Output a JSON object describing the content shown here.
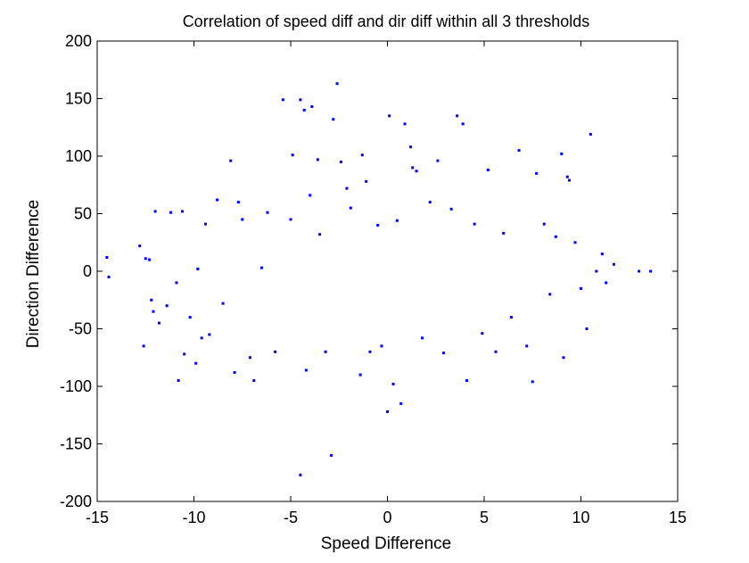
{
  "chart_data": {
    "type": "scatter",
    "title": "Correlation of speed diff and dir diff within all 3 thresholds",
    "xlabel": "Speed Difference",
    "ylabel": "Direction Difference",
    "xlim": [
      -15,
      15
    ],
    "ylim": [
      -200,
      200
    ],
    "xticks": [
      -15,
      -10,
      -5,
      0,
      5,
      10,
      15
    ],
    "yticks": [
      -200,
      -150,
      -100,
      -50,
      0,
      50,
      100,
      150,
      200
    ],
    "xtick_labels": [
      "-15",
      "-10",
      "-5",
      "0",
      "5",
      "10",
      "15"
    ],
    "ytick_labels": [
      "-200",
      "-150",
      "-100",
      "-50",
      "0",
      "50",
      "100",
      "150",
      "200"
    ],
    "grid": false,
    "legend": "none",
    "marker_color": "#0000ff",
    "series": [
      {
        "points": [
          [
            -14.5,
            12
          ],
          [
            -14.4,
            -5
          ],
          [
            -12.8,
            22
          ],
          [
            -12.5,
            11
          ],
          [
            -12.3,
            10
          ],
          [
            -12.6,
            -65
          ],
          [
            -12.2,
            -25
          ],
          [
            -12.1,
            -35
          ],
          [
            -12.0,
            52
          ],
          [
            -11.8,
            -45
          ],
          [
            -11.4,
            -30
          ],
          [
            -11.2,
            51
          ],
          [
            -10.9,
            -10
          ],
          [
            -10.8,
            -95
          ],
          [
            -10.6,
            52
          ],
          [
            -10.5,
            -72
          ],
          [
            -10.2,
            -40
          ],
          [
            -9.9,
            -80
          ],
          [
            -9.8,
            2
          ],
          [
            -9.6,
            -58
          ],
          [
            -9.4,
            41
          ],
          [
            -9.2,
            -55
          ],
          [
            -8.8,
            62
          ],
          [
            -8.5,
            -28
          ],
          [
            -8.1,
            96
          ],
          [
            -7.9,
            -88
          ],
          [
            -7.7,
            60
          ],
          [
            -7.5,
            45
          ],
          [
            -7.1,
            -75
          ],
          [
            -6.9,
            -95
          ],
          [
            -6.5,
            3
          ],
          [
            -6.2,
            51
          ],
          [
            -5.8,
            -70
          ],
          [
            -5.4,
            149
          ],
          [
            -5.0,
            45
          ],
          [
            -4.9,
            101
          ],
          [
            -4.5,
            149
          ],
          [
            -4.3,
            140
          ],
          [
            -4.2,
            -86
          ],
          [
            -4.0,
            66
          ],
          [
            -3.9,
            143
          ],
          [
            -3.6,
            97
          ],
          [
            -3.5,
            32
          ],
          [
            -3.2,
            -70
          ],
          [
            -2.8,
            132
          ],
          [
            -2.9,
            -160
          ],
          [
            -4.5,
            -177
          ],
          [
            -2.6,
            163
          ],
          [
            -2.4,
            95
          ],
          [
            -2.1,
            72
          ],
          [
            -1.9,
            55
          ],
          [
            -1.4,
            -90
          ],
          [
            -1.3,
            101
          ],
          [
            -1.1,
            78
          ],
          [
            -0.9,
            -70
          ],
          [
            -0.5,
            40
          ],
          [
            -0.3,
            -65
          ],
          [
            0.0,
            -122
          ],
          [
            0.1,
            135
          ],
          [
            0.3,
            -98
          ],
          [
            0.5,
            44
          ],
          [
            0.7,
            -115
          ],
          [
            0.9,
            128
          ],
          [
            1.2,
            108
          ],
          [
            1.3,
            90
          ],
          [
            1.5,
            87
          ],
          [
            1.8,
            -58
          ],
          [
            2.2,
            60
          ],
          [
            2.6,
            96
          ],
          [
            2.9,
            -71
          ],
          [
            3.3,
            54
          ],
          [
            3.6,
            135
          ],
          [
            3.9,
            128
          ],
          [
            4.1,
            -95
          ],
          [
            4.5,
            41
          ],
          [
            4.9,
            -54
          ],
          [
            5.2,
            88
          ],
          [
            5.6,
            -70
          ],
          [
            6.0,
            33
          ],
          [
            6.4,
            -40
          ],
          [
            6.8,
            105
          ],
          [
            7.2,
            -65
          ],
          [
            7.5,
            -96
          ],
          [
            7.7,
            85
          ],
          [
            8.1,
            41
          ],
          [
            8.4,
            -20
          ],
          [
            8.7,
            30
          ],
          [
            9.0,
            102
          ],
          [
            9.1,
            -75
          ],
          [
            9.3,
            82
          ],
          [
            9.4,
            79
          ],
          [
            9.7,
            25
          ],
          [
            10.0,
            -15
          ],
          [
            10.3,
            -50
          ],
          [
            10.5,
            119
          ],
          [
            10.8,
            0
          ],
          [
            11.1,
            15
          ],
          [
            11.3,
            -10
          ],
          [
            11.7,
            6
          ],
          [
            13.0,
            0
          ],
          [
            13.6,
            0
          ]
        ]
      }
    ]
  }
}
